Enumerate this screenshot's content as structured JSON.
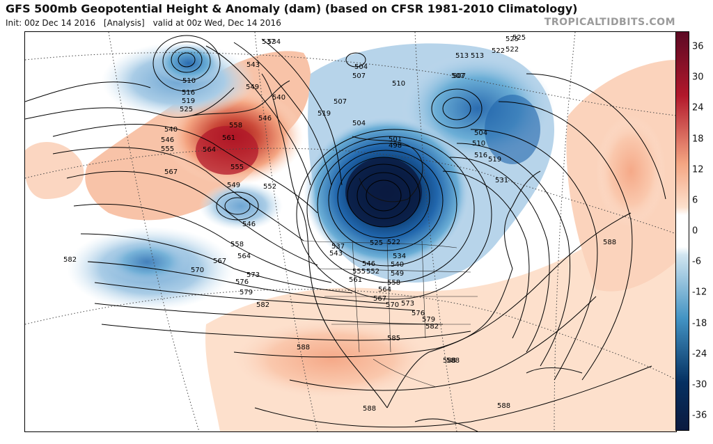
{
  "header": {
    "title": "GFS 500mb Geopotential Height & Anomaly (dam) (based on CFSR 1981-2010 Climatology)",
    "init": "Init: 00z Dec 14 2016",
    "run_type": "[Analysis]",
    "valid": "valid at 00z Wed, Dec 14 2016",
    "brand": "TROPICALTIDBITS.COM"
  },
  "colorbar": {
    "ticks": [
      "36",
      "30",
      "24",
      "18",
      "12",
      "6",
      "0",
      "-6",
      "-12",
      "-18",
      "-24",
      "-30",
      "-36"
    ],
    "colors": {
      "deep_red": "#5c0a24",
      "red": "#b2182b",
      "salmon": "#f4a582",
      "light": "#fde0cc",
      "white": "#ffffff",
      "light_blue": "#d1e5f0",
      "blue": "#4393c3",
      "dark_blue": "#053061",
      "navy": "#0b1a3f"
    }
  },
  "map": {
    "contour_labels": [
      {
        "text": "537"
      },
      {
        "text": "534"
      },
      {
        "text": "543"
      },
      {
        "text": "510"
      },
      {
        "text": "516"
      },
      {
        "text": "519"
      },
      {
        "text": "525"
      },
      {
        "text": "549"
      },
      {
        "text": "540"
      },
      {
        "text": "546"
      },
      {
        "text": "558"
      },
      {
        "text": "561"
      },
      {
        "text": "540"
      },
      {
        "text": "546"
      },
      {
        "text": "555"
      },
      {
        "text": "564"
      },
      {
        "text": "567"
      },
      {
        "text": "555"
      },
      {
        "text": "549"
      },
      {
        "text": "552"
      },
      {
        "text": "546"
      },
      {
        "text": "558"
      },
      {
        "text": "564"
      },
      {
        "text": "567"
      },
      {
        "text": "570"
      },
      {
        "text": "573"
      },
      {
        "text": "576"
      },
      {
        "text": "579"
      },
      {
        "text": "582"
      },
      {
        "text": "582"
      },
      {
        "text": "588"
      },
      {
        "text": "585"
      },
      {
        "text": "588"
      },
      {
        "text": "588"
      },
      {
        "text": "588"
      },
      {
        "text": "588"
      },
      {
        "text": "504"
      },
      {
        "text": "507"
      },
      {
        "text": "510"
      },
      {
        "text": "507"
      },
      {
        "text": "519"
      },
      {
        "text": "504"
      },
      {
        "text": "501"
      },
      {
        "text": "498"
      },
      {
        "text": "513"
      },
      {
        "text": "507"
      },
      {
        "text": "504"
      },
      {
        "text": "510"
      },
      {
        "text": "516"
      },
      {
        "text": "519"
      },
      {
        "text": "531"
      },
      {
        "text": "522"
      },
      {
        "text": "525"
      },
      {
        "text": "537"
      },
      {
        "text": "543"
      },
      {
        "text": "525"
      },
      {
        "text": "522"
      },
      {
        "text": "534"
      },
      {
        "text": "540"
      },
      {
        "text": "546"
      },
      {
        "text": "552"
      },
      {
        "text": "555"
      },
      {
        "text": "549"
      },
      {
        "text": "561"
      },
      {
        "text": "558"
      },
      {
        "text": "564"
      },
      {
        "text": "567"
      },
      {
        "text": "570"
      },
      {
        "text": "573"
      },
      {
        "text": "576"
      },
      {
        "text": "579"
      },
      {
        "text": "582"
      },
      {
        "text": "588"
      },
      {
        "text": "513"
      },
      {
        "text": "522"
      },
      {
        "text": "525"
      },
      {
        "text": "507"
      }
    ]
  }
}
